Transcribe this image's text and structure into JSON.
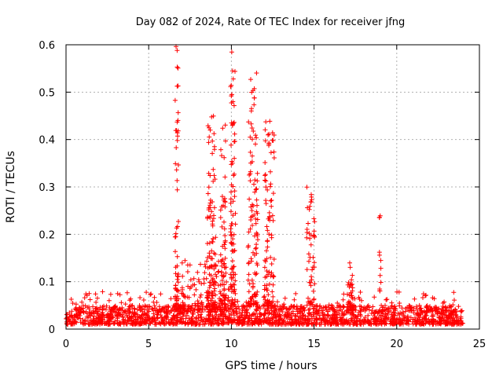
{
  "chart_data": {
    "type": "scatter",
    "title": "Day 082 of 2024, Rate Of TEC Index for receiver jfng",
    "xlabel": "GPS time / hours",
    "ylabel": "ROTI / TECUs",
    "xlim": [
      0,
      25
    ],
    "ylim": [
      0,
      0.6
    ],
    "xticks": [
      0,
      5,
      10,
      15,
      20,
      25
    ],
    "yticks": [
      0,
      0.1,
      0.2,
      0.3,
      0.4,
      0.5,
      0.6
    ],
    "xtick_labels": [
      "0",
      "5",
      "10",
      "15",
      "20",
      "25"
    ],
    "ytick_labels": [
      "0",
      "0.1",
      "0.2",
      "0.3",
      "0.4",
      "0.5",
      "0.6"
    ],
    "grid": true,
    "marker": "+",
    "color": "#ff0000",
    "series": [
      {
        "name": "ROTI",
        "baseline_band": {
          "x_range": [
            0,
            24
          ],
          "y_range": [
            0.01,
            0.05
          ]
        },
        "clusters": [
          {
            "x_center": 6.7,
            "x_spread": 0.1,
            "y_min": 0.05,
            "y_max": 0.6,
            "count": 60
          },
          {
            "x_center": 8.8,
            "x_spread": 0.25,
            "y_min": 0.05,
            "y_max": 0.45,
            "count": 90
          },
          {
            "x_center": 9.5,
            "x_spread": 0.15,
            "y_min": 0.05,
            "y_max": 0.44,
            "count": 60
          },
          {
            "x_center": 10.1,
            "x_spread": 0.15,
            "y_min": 0.05,
            "y_max": 0.6,
            "count": 90
          },
          {
            "x_center": 11.3,
            "x_spread": 0.3,
            "y_min": 0.05,
            "y_max": 0.55,
            "count": 110
          },
          {
            "x_center": 12.3,
            "x_spread": 0.3,
            "y_min": 0.05,
            "y_max": 0.44,
            "count": 90
          },
          {
            "x_center": 14.8,
            "x_spread": 0.25,
            "y_min": 0.05,
            "y_max": 0.3,
            "count": 50
          },
          {
            "x_center": 17.2,
            "x_spread": 0.2,
            "y_min": 0.04,
            "y_max": 0.14,
            "count": 40
          },
          {
            "x_center": 19.0,
            "x_spread": 0.05,
            "y_min": 0.08,
            "y_max": 0.24,
            "count": 12
          },
          {
            "x_center": 8.5,
            "x_spread": 1.5,
            "y_min": 0.04,
            "y_max": 0.15,
            "count": 120
          }
        ]
      }
    ]
  }
}
